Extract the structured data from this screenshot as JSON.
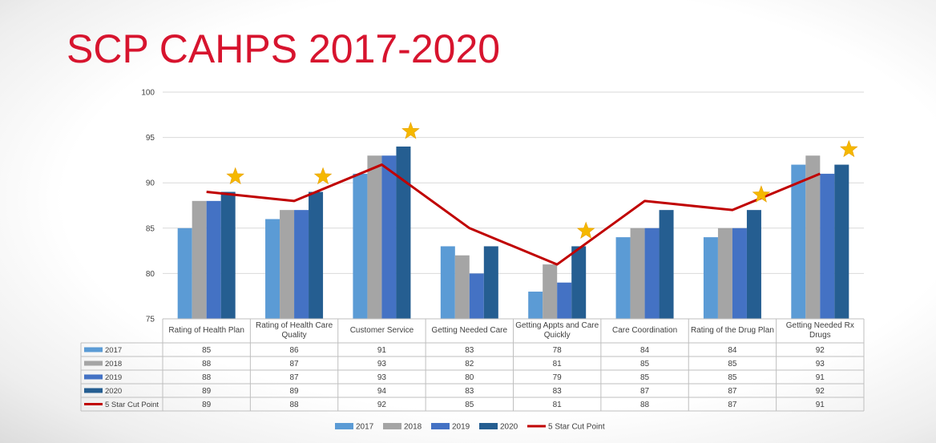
{
  "title": "SCP CAHPS 2017-2020",
  "colors": {
    "title": "#d7142e",
    "cut_line": "#c00000",
    "star": "#f5b800"
  },
  "chart_data": {
    "type": "bar",
    "title": "",
    "xlabel": "",
    "ylabel": "",
    "ylim": [
      75,
      100
    ],
    "yticks": [
      75,
      80,
      85,
      90,
      95,
      100
    ],
    "grid": true,
    "legend_position": "bottom",
    "data_table": true,
    "categories": [
      "Rating of Health Plan",
      "Rating of Health Care Quality",
      "Customer Service",
      "Getting Needed Care",
      "Getting Appts and Care Quickly",
      "Care Coordination",
      "Rating of the Drug Plan",
      "Getting Needed Rx Drugs"
    ],
    "category_label_lines": [
      [
        "Rating of Health Plan"
      ],
      [
        "Rating of Health Care",
        "Quality"
      ],
      [
        "Customer Service"
      ],
      [
        "Getting Needed Care"
      ],
      [
        "Getting Appts and Care",
        "Quickly"
      ],
      [
        "Care Coordination"
      ],
      [
        "Rating of the Drug Plan"
      ],
      [
        "Getting Needed Rx",
        "Drugs"
      ]
    ],
    "series": [
      {
        "name": "2017",
        "type": "bar",
        "color": "#5b9bd5",
        "values": [
          85,
          86,
          91,
          83,
          78,
          84,
          84,
          92
        ]
      },
      {
        "name": "2018",
        "type": "bar",
        "color": "#a5a5a5",
        "values": [
          88,
          87,
          93,
          82,
          81,
          85,
          85,
          93
        ]
      },
      {
        "name": "2019",
        "type": "bar",
        "color": "#4472c4",
        "values": [
          88,
          87,
          93,
          80,
          79,
          85,
          85,
          91
        ]
      },
      {
        "name": "2020",
        "type": "bar",
        "color": "#255e91",
        "values": [
          89,
          89,
          94,
          83,
          83,
          87,
          87,
          92
        ]
      },
      {
        "name": "5 Star Cut Point",
        "type": "line",
        "color": "#c00000",
        "values": [
          89,
          88,
          92,
          85,
          81,
          88,
          87,
          91
        ]
      }
    ],
    "stars_on_categories": [
      0,
      1,
      2,
      4,
      6,
      7
    ]
  }
}
